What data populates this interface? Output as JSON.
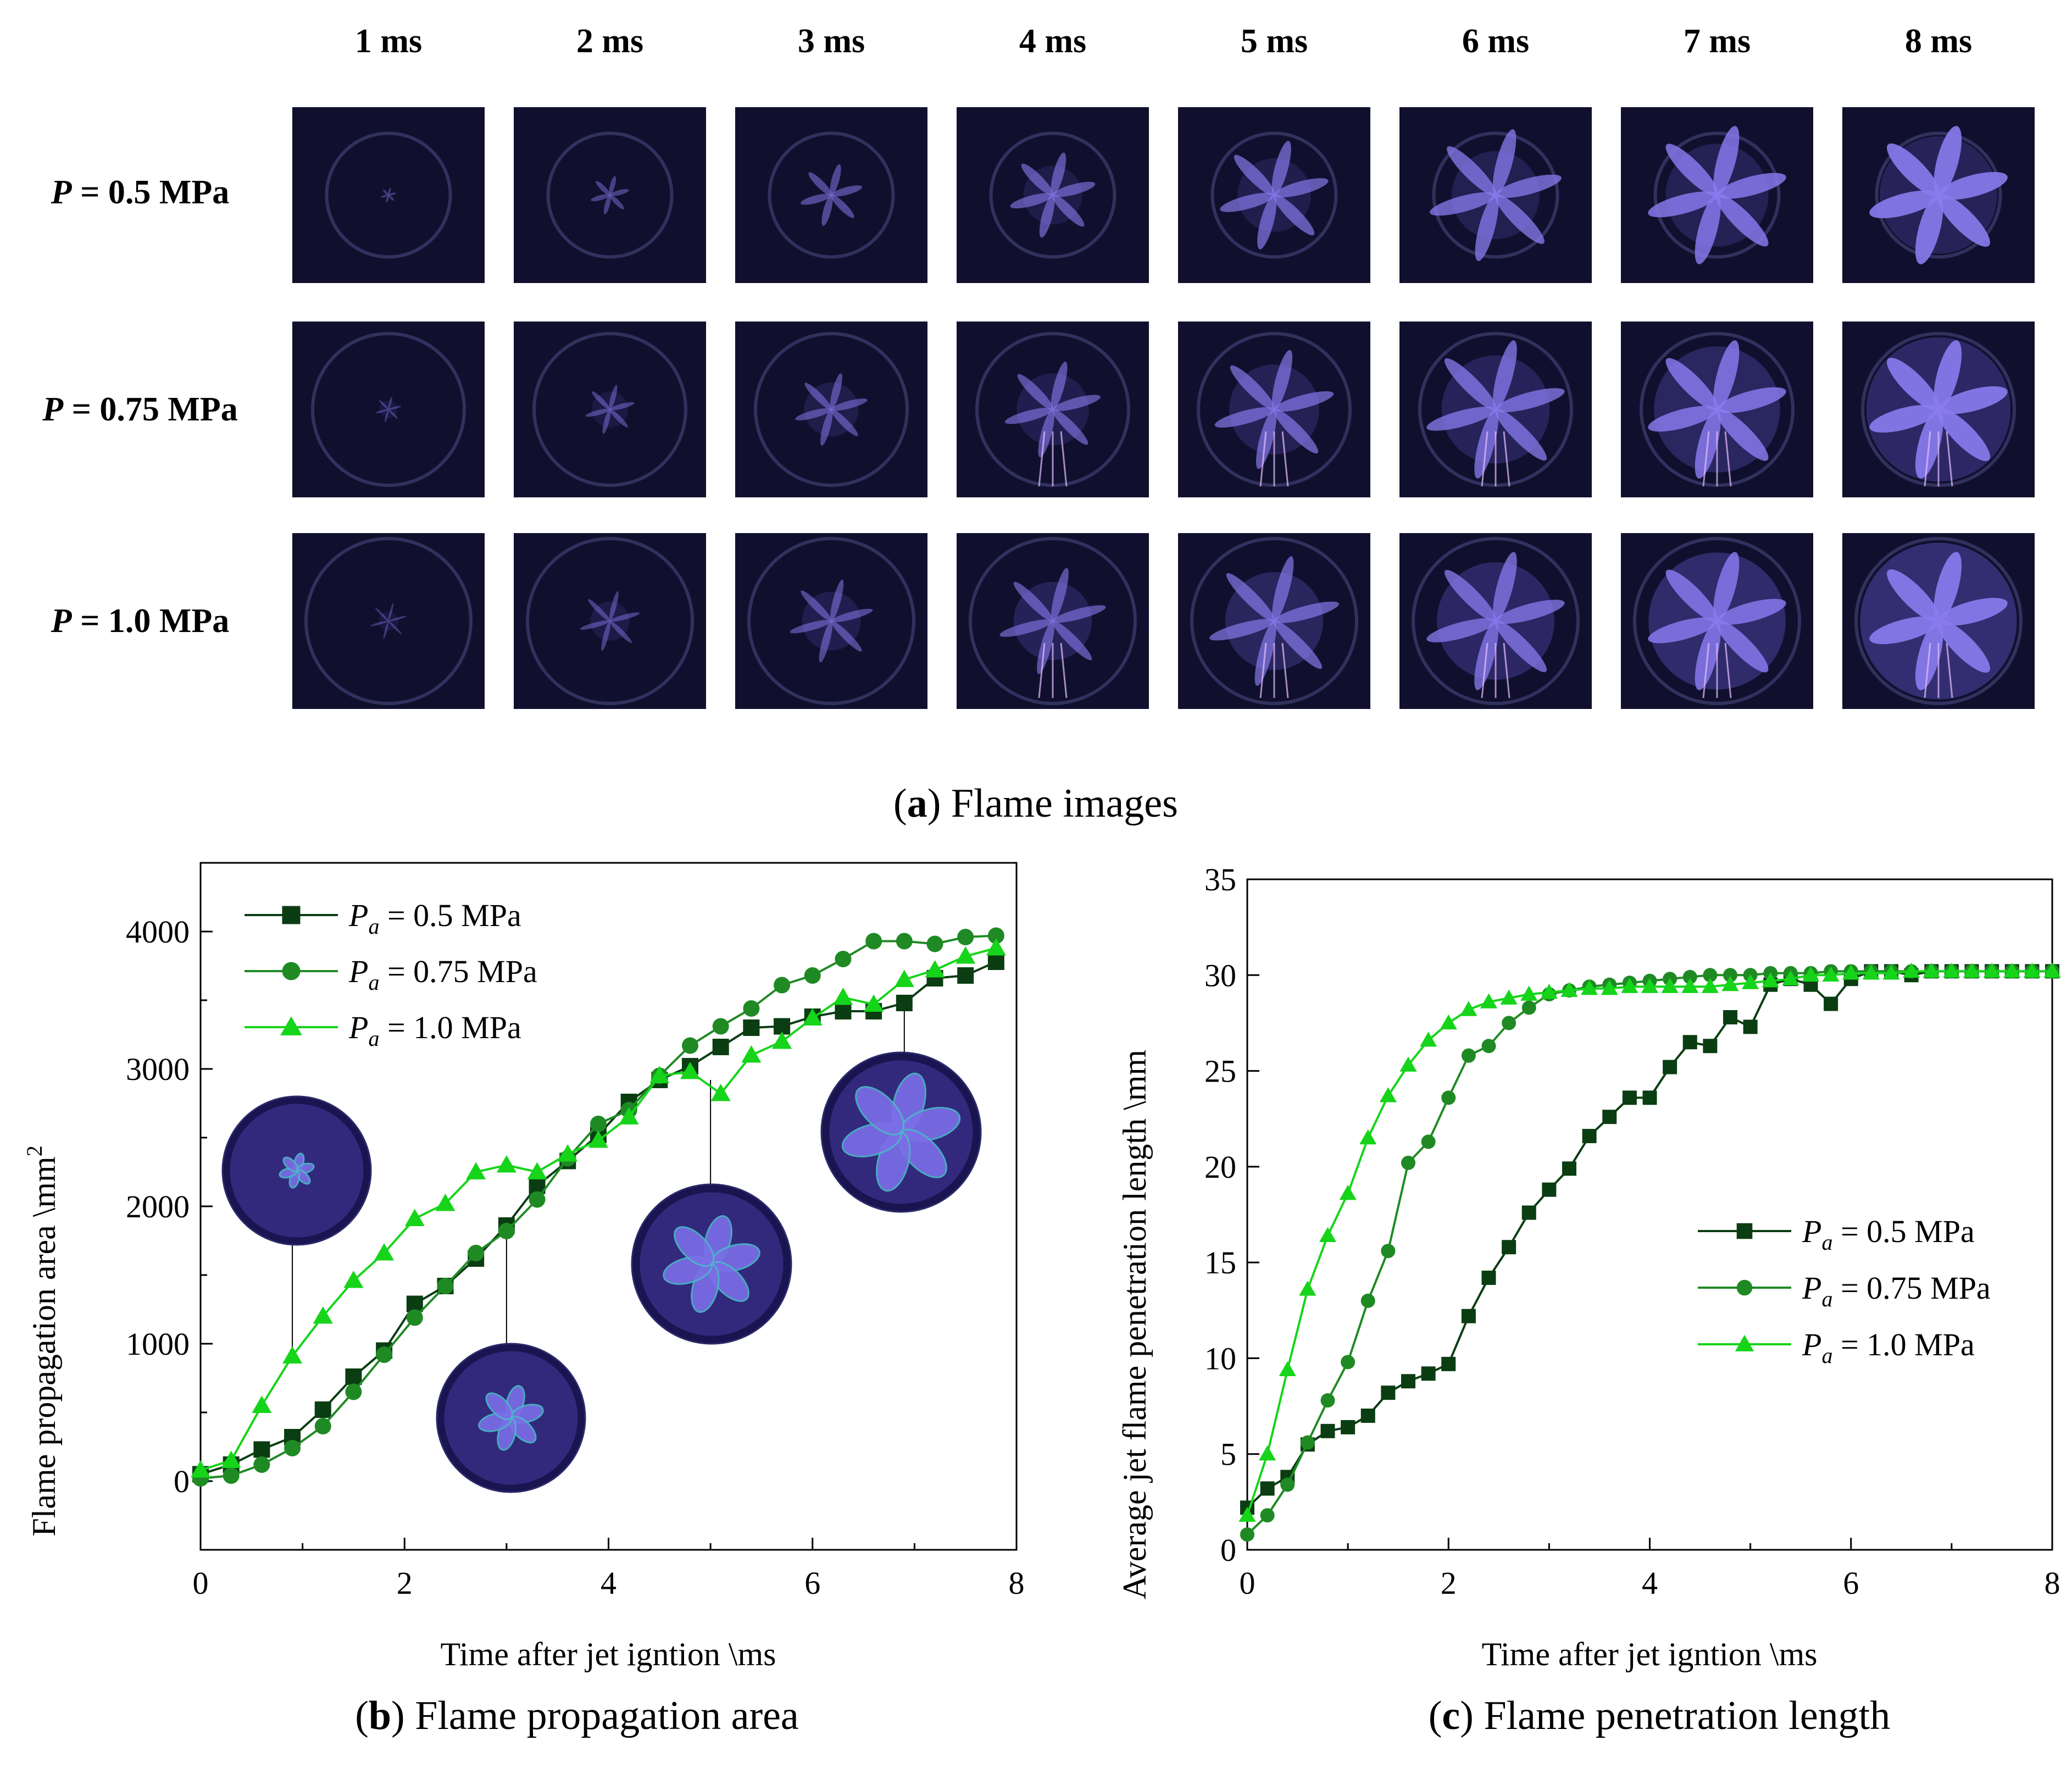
{
  "panel_a": {
    "caption_letter": "a",
    "caption_text": "Flame images",
    "columns": [
      "1 ms",
      "2 ms",
      "3 ms",
      "4 ms",
      "5 ms",
      "6 ms",
      "7 ms",
      "8 ms"
    ],
    "rows": [
      {
        "label_symbol": "P",
        "label_value": " = 0.5 MPa"
      },
      {
        "label_symbol": "P",
        "label_value": " = 0.75 MPa"
      },
      {
        "label_symbol": "P",
        "label_value": " = 1.0 MPa"
      }
    ]
  },
  "panel_b": {
    "caption_letter": "b",
    "caption_text": "Flame propagation area"
  },
  "panel_c": {
    "caption_letter": "c",
    "caption_text": "Flame penetration length"
  },
  "colors": {
    "s1": "#0b3d12",
    "s2": "#1f8a24",
    "s3": "#16d41a",
    "tile_bg": "#10102e",
    "flame": "#6a5cd8"
  },
  "chart_data": [
    {
      "type": "line",
      "xlabel": "Time after jet igntion \\ms",
      "ylabel": "Flame propagation area \\mm",
      "ylabel_sup": "2",
      "xlim": [
        0,
        8
      ],
      "ylim": [
        -500,
        4500
      ],
      "xticks": [
        0,
        2,
        4,
        6,
        8
      ],
      "yticks": [
        0,
        1000,
        2000,
        3000,
        4000
      ],
      "legend_position": "top-left",
      "series": [
        {
          "legend_symbol": "P",
          "legend_sub": "a",
          "name": " = 0.5 MPa",
          "marker": "square",
          "x": [
            0,
            0.3,
            0.6,
            0.9,
            1.2,
            1.5,
            1.8,
            2.1,
            2.4,
            2.7,
            3.0,
            3.3,
            3.6,
            3.9,
            4.2,
            4.5,
            4.8,
            5.1,
            5.4,
            5.7,
            6.0,
            6.3,
            6.6,
            6.9,
            7.2,
            7.5,
            7.8
          ],
          "y": [
            50,
            120,
            230,
            320,
            520,
            760,
            950,
            1290,
            1420,
            1620,
            1860,
            2150,
            2330,
            2520,
            2760,
            2920,
            3020,
            3160,
            3300,
            3310,
            3380,
            3420,
            3420,
            3480,
            3660,
            3680,
            3780
          ]
        },
        {
          "legend_symbol": "P",
          "legend_sub": "a",
          "name": " = 0.75 MPa",
          "marker": "circle",
          "x": [
            0,
            0.3,
            0.6,
            0.9,
            1.2,
            1.5,
            1.8,
            2.1,
            2.4,
            2.7,
            3.0,
            3.3,
            3.6,
            3.9,
            4.2,
            4.5,
            4.8,
            5.1,
            5.4,
            5.7,
            6.0,
            6.3,
            6.6,
            6.9,
            7.2,
            7.5,
            7.8
          ],
          "y": [
            20,
            40,
            120,
            240,
            400,
            650,
            920,
            1190,
            1420,
            1660,
            1820,
            2050,
            2350,
            2600,
            2700,
            2950,
            3170,
            3310,
            3440,
            3610,
            3680,
            3800,
            3930,
            3930,
            3910,
            3960,
            3970
          ]
        },
        {
          "legend_symbol": "P",
          "legend_sub": "a",
          "name": " = 1.0 MPa",
          "marker": "triangle",
          "x": [
            0,
            0.3,
            0.6,
            0.9,
            1.2,
            1.5,
            1.8,
            2.1,
            2.4,
            2.7,
            3.0,
            3.3,
            3.6,
            3.9,
            4.2,
            4.5,
            4.8,
            5.1,
            5.4,
            5.7,
            6.0,
            6.3,
            6.6,
            6.9,
            7.2,
            7.5,
            7.8
          ],
          "y": [
            80,
            150,
            550,
            910,
            1200,
            1460,
            1660,
            1910,
            2020,
            2250,
            2300,
            2250,
            2380,
            2480,
            2650,
            2950,
            2980,
            2820,
            3100,
            3200,
            3370,
            3520,
            3470,
            3650,
            3720,
            3820,
            3880
          ]
        }
      ]
    },
    {
      "type": "line",
      "xlabel": "Time after jet igntion \\ms",
      "ylabel": "Average jet flame penetration length \\mm",
      "xlim": [
        0,
        8
      ],
      "ylim": [
        0,
        35
      ],
      "xticks": [
        0,
        2,
        4,
        6,
        8
      ],
      "yticks": [
        0,
        5,
        10,
        15,
        20,
        25,
        30,
        35
      ],
      "legend_position": "center-right",
      "series": [
        {
          "legend_symbol": "P",
          "legend_sub": "a",
          "name": " = 0.5 MPa",
          "marker": "square",
          "x": [
            0,
            0.2,
            0.4,
            0.6,
            0.8,
            1.0,
            1.2,
            1.4,
            1.6,
            1.8,
            2.0,
            2.2,
            2.4,
            2.6,
            2.8,
            3.0,
            3.2,
            3.4,
            3.6,
            3.8,
            4.0,
            4.2,
            4.4,
            4.6,
            4.8,
            5.0,
            5.2,
            5.4,
            5.6,
            5.8,
            6.0,
            6.2,
            6.4,
            6.6,
            6.8,
            7.0,
            7.2,
            7.4,
            7.6,
            7.8,
            8.0
          ],
          "y": [
            2.2,
            3.2,
            3.8,
            5.5,
            6.2,
            6.4,
            7.0,
            8.2,
            8.8,
            9.2,
            9.7,
            12.2,
            14.2,
            15.8,
            17.6,
            18.8,
            19.9,
            21.6,
            22.6,
            23.6,
            23.6,
            25.2,
            26.5,
            26.3,
            27.8,
            27.3,
            29.5,
            29.8,
            29.5,
            28.5,
            29.8,
            30.2,
            30.2,
            30.0,
            30.2,
            30.2,
            30.2,
            30.2,
            30.2,
            30.2,
            30.2
          ]
        },
        {
          "legend_symbol": "P",
          "legend_sub": "a",
          "name": " = 0.75 MPa",
          "marker": "circle",
          "x": [
            0,
            0.2,
            0.4,
            0.6,
            0.8,
            1.0,
            1.2,
            1.4,
            1.6,
            1.8,
            2.0,
            2.2,
            2.4,
            2.6,
            2.8,
            3.0,
            3.2,
            3.4,
            3.6,
            3.8,
            4.0,
            4.2,
            4.4,
            4.6,
            4.8,
            5.0,
            5.2,
            5.4,
            5.6,
            5.8,
            6.0,
            6.2,
            6.4,
            6.6,
            6.8,
            7.0,
            7.2,
            7.4,
            7.6,
            7.8,
            8.0
          ],
          "y": [
            0.8,
            1.8,
            3.4,
            5.6,
            7.8,
            9.8,
            13.0,
            15.6,
            20.2,
            21.3,
            23.6,
            25.8,
            26.3,
            27.5,
            28.3,
            29.0,
            29.2,
            29.4,
            29.5,
            29.6,
            29.7,
            29.8,
            29.9,
            30.0,
            30.0,
            30.0,
            30.1,
            30.1,
            30.1,
            30.2,
            30.2,
            30.2,
            30.2,
            30.2,
            30.2,
            30.2,
            30.2,
            30.2,
            30.2,
            30.2,
            30.2
          ]
        },
        {
          "legend_symbol": "P",
          "legend_sub": "a",
          "name": " = 1.0 MPa",
          "marker": "triangle",
          "x": [
            0,
            0.2,
            0.4,
            0.6,
            0.8,
            1.0,
            1.2,
            1.4,
            1.6,
            1.8,
            2.0,
            2.2,
            2.4,
            2.6,
            2.8,
            3.0,
            3.2,
            3.4,
            3.6,
            3.8,
            4.0,
            4.2,
            4.4,
            4.6,
            4.8,
            5.0,
            5.2,
            5.4,
            5.6,
            5.8,
            6.0,
            6.2,
            6.4,
            6.6,
            6.8,
            7.0,
            7.2,
            7.4,
            7.6,
            7.8,
            8.0
          ],
          "y": [
            1.8,
            5.0,
            9.4,
            13.6,
            16.4,
            18.6,
            21.5,
            23.7,
            25.3,
            26.6,
            27.5,
            28.2,
            28.6,
            28.8,
            29.0,
            29.1,
            29.2,
            29.3,
            29.3,
            29.4,
            29.4,
            29.4,
            29.4,
            29.4,
            29.5,
            29.6,
            29.7,
            29.8,
            30.0,
            30.0,
            30.1,
            30.1,
            30.1,
            30.2,
            30.2,
            30.2,
            30.2,
            30.2,
            30.2,
            30.2,
            30.2
          ]
        }
      ]
    }
  ]
}
